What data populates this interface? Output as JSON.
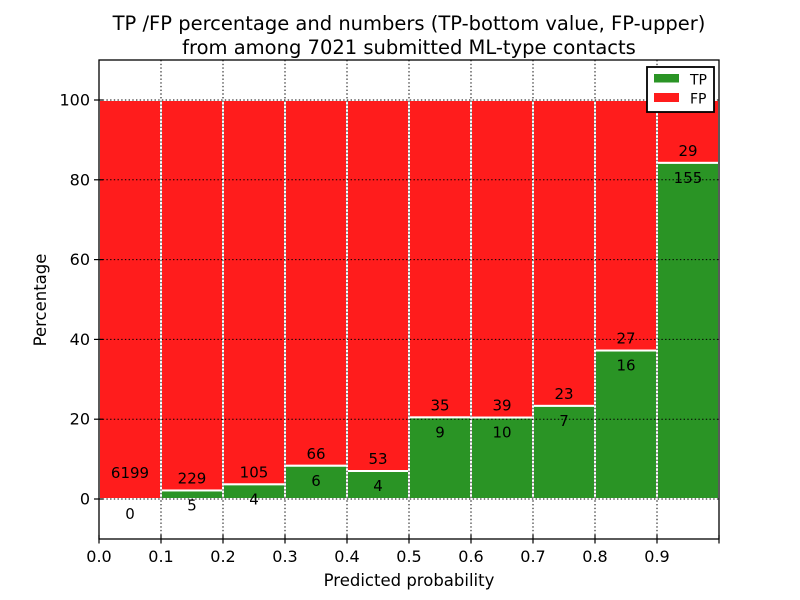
{
  "title": {
    "line1": "TP /FP percentage and numbers (TP-bottom value, FP-upper)",
    "line2": "from among 7021 submitted ML-type contacts"
  },
  "chart_data": {
    "type": "bar",
    "stacked": true,
    "title": "TP /FP percentage and numbers (TP-bottom value, FP-upper) from among 7021 submitted ML-type contacts",
    "xlabel": "Predicted probability",
    "ylabel": "Percentage",
    "xlim": [
      0.0,
      1.0
    ],
    "ylim": [
      -10,
      110
    ],
    "x_tick_labels": [
      "0.0",
      "0.1",
      "0.2",
      "0.3",
      "0.4",
      "0.5",
      "0.6",
      "0.7",
      "0.8",
      "0.9"
    ],
    "y_tick_labels": [
      "0",
      "20",
      "40",
      "60",
      "80",
      "100"
    ],
    "grid": "dotted-black-over-bars",
    "bar_edge_color": "#ffffff",
    "tp_color": "#2a9425",
    "fp_color": "#ff1c1c",
    "legend": {
      "position": "upper-right",
      "entries": [
        {
          "label": "TP",
          "color": "#2a9425"
        },
        {
          "label": "FP",
          "color": "#ff1c1c"
        }
      ]
    },
    "bins": [
      {
        "range": [
          0.0,
          0.1
        ],
        "tp": 0,
        "fp": 6199
      },
      {
        "range": [
          0.1,
          0.2
        ],
        "tp": 5,
        "fp": 229
      },
      {
        "range": [
          0.2,
          0.3
        ],
        "tp": 4,
        "fp": 105
      },
      {
        "range": [
          0.3,
          0.4
        ],
        "tp": 6,
        "fp": 66
      },
      {
        "range": [
          0.4,
          0.5
        ],
        "tp": 4,
        "fp": 53
      },
      {
        "range": [
          0.5,
          0.6
        ],
        "tp": 9,
        "fp": 35
      },
      {
        "range": [
          0.6,
          0.7
        ],
        "tp": 10,
        "fp": 39
      },
      {
        "range": [
          0.7,
          0.8
        ],
        "tp": 7,
        "fp": 23
      },
      {
        "range": [
          0.8,
          0.9
        ],
        "tp": 16,
        "fp": 27
      },
      {
        "range": [
          0.9,
          1.0
        ],
        "tp": 155,
        "fp": 29
      }
    ],
    "bar_note": "green height = tp/(tp+fp)*100, red fills remainder up to 100%"
  }
}
